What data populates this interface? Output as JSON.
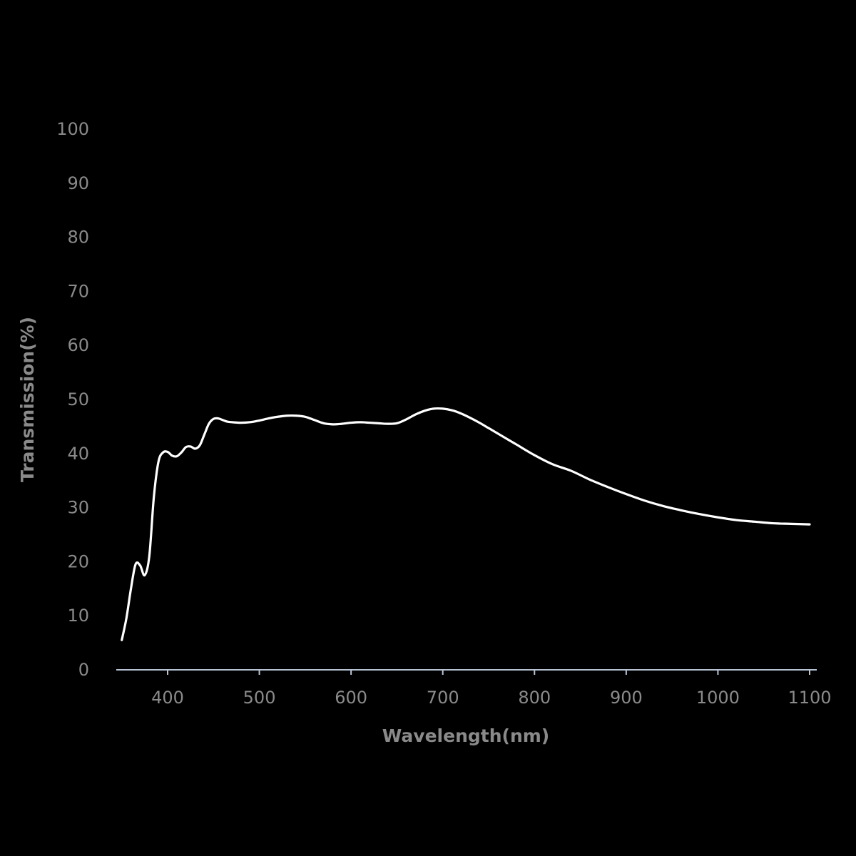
{
  "chart_data": {
    "type": "line",
    "title": "",
    "xlabel": "Wavelength(nm)",
    "ylabel": "Transmission(%)",
    "xlim": [
      345,
      1105
    ],
    "ylim": [
      0,
      100
    ],
    "x_ticks": [
      "400",
      "500",
      "600",
      "700",
      "800",
      "900",
      "1000",
      "1100"
    ],
    "y_ticks": [
      "0",
      "10",
      "20",
      "30",
      "40",
      "50",
      "60",
      "70",
      "80",
      "90",
      "100"
    ],
    "grid": false,
    "line_color": "#ffffff",
    "axis_color": "#b8c4d6",
    "text_color": "#8a8a8a",
    "background": "#000000",
    "series": [
      {
        "x": [
          350,
          355,
          360,
          365,
          370,
          375,
          380,
          385,
          390,
          395,
          400,
          405,
          410,
          415,
          420,
          425,
          430,
          435,
          440,
          445,
          450,
          455,
          460,
          465,
          470,
          480,
          490,
          500,
          510,
          520,
          530,
          540,
          550,
          560,
          570,
          580,
          590,
          600,
          610,
          620,
          630,
          640,
          650,
          660,
          670,
          680,
          690,
          700,
          710,
          720,
          730,
          740,
          750,
          760,
          780,
          800,
          820,
          840,
          860,
          880,
          900,
          920,
          940,
          960,
          980,
          1000,
          1020,
          1040,
          1060,
          1080,
          1100
        ],
        "y": [
          5.5,
          9.5,
          15,
          19.5,
          19.3,
          17.5,
          21,
          32,
          38.5,
          40.2,
          40.3,
          39.6,
          39.5,
          40.2,
          41.2,
          41.3,
          40.9,
          41.5,
          43.5,
          45.5,
          46.4,
          46.5,
          46.2,
          45.9,
          45.8,
          45.7,
          45.8,
          46.1,
          46.5,
          46.8,
          47.0,
          47.0,
          46.8,
          46.2,
          45.6,
          45.4,
          45.5,
          45.7,
          45.8,
          45.7,
          45.6,
          45.5,
          45.6,
          46.3,
          47.2,
          47.9,
          48.3,
          48.3,
          48.0,
          47.4,
          46.6,
          45.7,
          44.7,
          43.7,
          41.7,
          39.7,
          38.0,
          36.8,
          35.2,
          33.8,
          32.5,
          31.3,
          30.3,
          29.5,
          28.8,
          28.2,
          27.7,
          27.4,
          27.1,
          27.0,
          26.9
        ]
      }
    ]
  }
}
